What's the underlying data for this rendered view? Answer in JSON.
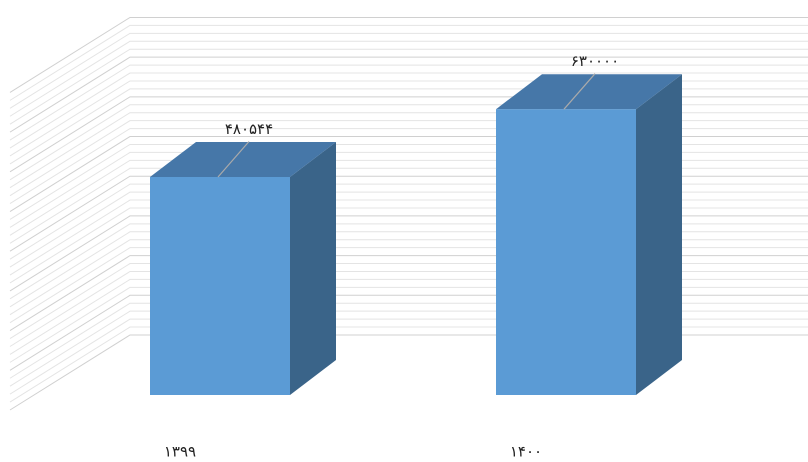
{
  "chart_data": {
    "type": "bar3d",
    "categories": [
      "۱۳۹۹",
      "۱۴۰۰"
    ],
    "values": [
      480544,
      630000
    ],
    "value_labels": [
      "۴۸۰۵۴۴",
      "۶۳۰۰۰۰"
    ],
    "color": "#5b9bd5",
    "ylim": [
      0,
      700000
    ],
    "grid": true
  }
}
